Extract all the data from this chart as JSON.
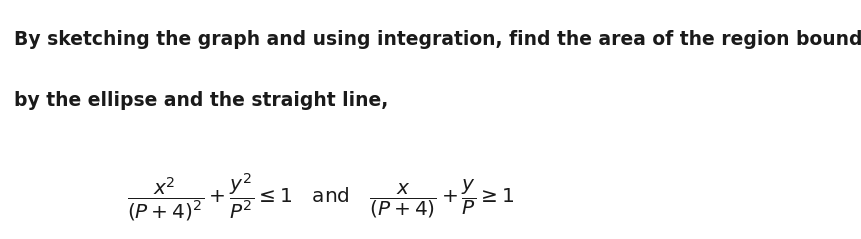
{
  "background_color": "#ffffff",
  "text_color": "#1a1a1a",
  "paragraph_line1": "By sketching the graph and using integration, find the area of the region bounded",
  "paragraph_line2": "by the ellipse and the straight line,",
  "formula_ellipse": "$\\dfrac{x^2}{(P+4)^2} + \\dfrac{y^2}{P^2} \\leq 1 \\quad \\text{and} \\quad \\dfrac{x}{(P+4)} + \\dfrac{y}{P} \\geq 1$",
  "fig_width": 8.62,
  "fig_height": 2.39,
  "dpi": 100,
  "font_size_text": 13.5,
  "font_size_formula": 14.5
}
